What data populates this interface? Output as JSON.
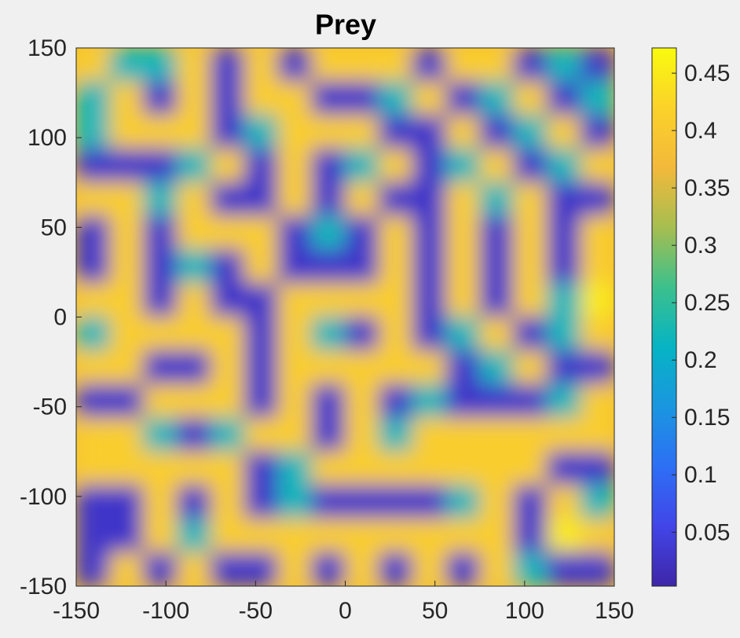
{
  "chart_data": {
    "type": "heatmap",
    "title": "Prey",
    "xlim": [
      -150,
      150
    ],
    "ylim": [
      -150,
      150
    ],
    "xticks": [
      -150,
      -100,
      -50,
      0,
      50,
      100,
      150
    ],
    "yticks": [
      -150,
      -100,
      -50,
      0,
      50,
      100,
      150
    ],
    "clim": [
      0.003,
      0.472
    ],
    "cticks": [
      0.05,
      0.1,
      0.15,
      0.2,
      0.25,
      0.3,
      0.35,
      0.4,
      0.45
    ],
    "colormap": [
      "#3e26a8",
      "#4245e8",
      "#2d6ff5",
      "#1a96e0",
      "#06b4c4",
      "#3cc08c",
      "#a6be50",
      "#f3b93b",
      "#fbd22a",
      "#f9fb0e"
    ],
    "values": [
      [
        0.41,
        0.22,
        0.22,
        0.41,
        0.03,
        0.41,
        0.03,
        0.41,
        0.41,
        0.41,
        0.03,
        0.41,
        0.41,
        0.03,
        0.22,
        0.03
      ],
      [
        0.22,
        0.41,
        0.03,
        0.41,
        0.03,
        0.41,
        0.41,
        0.03,
        0.03,
        0.22,
        0.41,
        0.03,
        0.22,
        0.41,
        0.03,
        0.22
      ],
      [
        0.22,
        0.41,
        0.41,
        0.41,
        0.03,
        0.22,
        0.41,
        0.41,
        0.41,
        0.03,
        0.03,
        0.41,
        0.03,
        0.22,
        0.41,
        0.03
      ],
      [
        0.03,
        0.03,
        0.03,
        0.22,
        0.41,
        0.03,
        0.41,
        0.03,
        0.22,
        0.41,
        0.03,
        0.22,
        0.41,
        0.03,
        0.22,
        0.41
      ],
      [
        0.41,
        0.41,
        0.22,
        0.41,
        0.03,
        0.03,
        0.41,
        0.03,
        0.41,
        0.03,
        0.03,
        0.41,
        0.22,
        0.41,
        0.03,
        0.03
      ],
      [
        0.03,
        0.41,
        0.03,
        0.41,
        0.41,
        0.41,
        0.03,
        0.22,
        0.03,
        0.41,
        0.03,
        0.41,
        0.03,
        0.41,
        0.03,
        0.41
      ],
      [
        0.03,
        0.41,
        0.03,
        0.22,
        0.03,
        0.41,
        0.03,
        0.03,
        0.03,
        0.41,
        0.03,
        0.41,
        0.03,
        0.41,
        0.03,
        0.41
      ],
      [
        0.41,
        0.41,
        0.03,
        0.41,
        0.03,
        0.03,
        0.41,
        0.41,
        0.41,
        0.41,
        0.03,
        0.41,
        0.03,
        0.41,
        0.22,
        0.45
      ],
      [
        0.22,
        0.41,
        0.41,
        0.41,
        0.41,
        0.03,
        0.41,
        0.22,
        0.03,
        0.41,
        0.03,
        0.22,
        0.41,
        0.03,
        0.22,
        0.41
      ],
      [
        0.41,
        0.41,
        0.03,
        0.03,
        0.41,
        0.03,
        0.41,
        0.41,
        0.41,
        0.41,
        0.41,
        0.03,
        0.22,
        0.41,
        0.03,
        0.03
      ],
      [
        0.03,
        0.03,
        0.41,
        0.41,
        0.41,
        0.03,
        0.41,
        0.03,
        0.41,
        0.03,
        0.22,
        0.03,
        0.03,
        0.03,
        0.22,
        0.41
      ],
      [
        0.41,
        0.41,
        0.22,
        0.03,
        0.22,
        0.41,
        0.41,
        0.03,
        0.41,
        0.22,
        0.41,
        0.41,
        0.41,
        0.41,
        0.41,
        0.41
      ],
      [
        0.41,
        0.41,
        0.41,
        0.41,
        0.41,
        0.03,
        0.22,
        0.41,
        0.41,
        0.41,
        0.41,
        0.41,
        0.41,
        0.41,
        0.03,
        0.03
      ],
      [
        0.03,
        0.03,
        0.41,
        0.03,
        0.41,
        0.03,
        0.22,
        0.03,
        0.03,
        0.03,
        0.03,
        0.22,
        0.41,
        0.03,
        0.41,
        0.22
      ],
      [
        0.03,
        0.03,
        0.41,
        0.22,
        0.41,
        0.41,
        0.41,
        0.41,
        0.41,
        0.41,
        0.41,
        0.41,
        0.41,
        0.03,
        0.45,
        0.41
      ],
      [
        0.03,
        0.41,
        0.03,
        0.41,
        0.03,
        0.03,
        0.41,
        0.03,
        0.41,
        0.03,
        0.41,
        0.03,
        0.41,
        0.22,
        0.03,
        0.03
      ]
    ]
  }
}
